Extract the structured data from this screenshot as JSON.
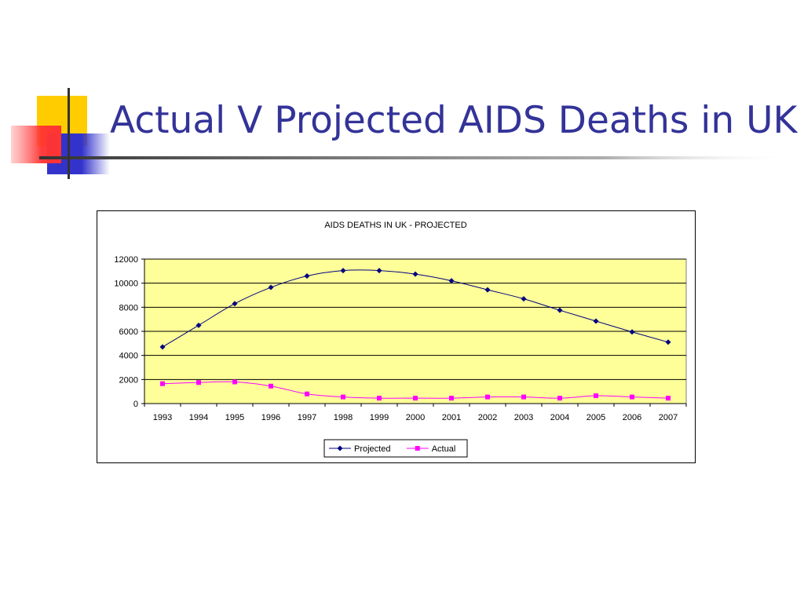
{
  "slide": {
    "title": "Actual V Projected AIDS Deaths in UK"
  },
  "decoration": {
    "yellow": "#FFCC00",
    "red": "#FF3333",
    "blue": "#3333CC",
    "line": "#333333"
  },
  "chart_data": {
    "type": "line",
    "title": "AIDS DEATHS IN UK - PROJECTED",
    "xlabel": "",
    "ylabel": "",
    "categories": [
      "1993",
      "1994",
      "1995",
      "1996",
      "1997",
      "1998",
      "1999",
      "2000",
      "2001",
      "2002",
      "2003",
      "2004",
      "2005",
      "2006",
      "2007"
    ],
    "ylim": [
      0,
      12000
    ],
    "yticks": [
      0,
      2000,
      4000,
      6000,
      8000,
      10000,
      12000
    ],
    "grid": true,
    "plot_background": "#FFFF99",
    "legend_position": "bottom",
    "series": [
      {
        "name": "Projected",
        "color": "#000080",
        "marker": "diamond",
        "values": [
          4700,
          6500,
          8300,
          9650,
          10600,
          11050,
          11050,
          10750,
          10200,
          9450,
          8700,
          7750,
          6850,
          5950,
          5100
        ]
      },
      {
        "name": "Actual",
        "color": "#FF00FF",
        "marker": "square",
        "values": [
          1650,
          1750,
          1800,
          1450,
          800,
          550,
          450,
          450,
          450,
          550,
          550,
          450,
          650,
          550,
          450
        ]
      }
    ]
  }
}
